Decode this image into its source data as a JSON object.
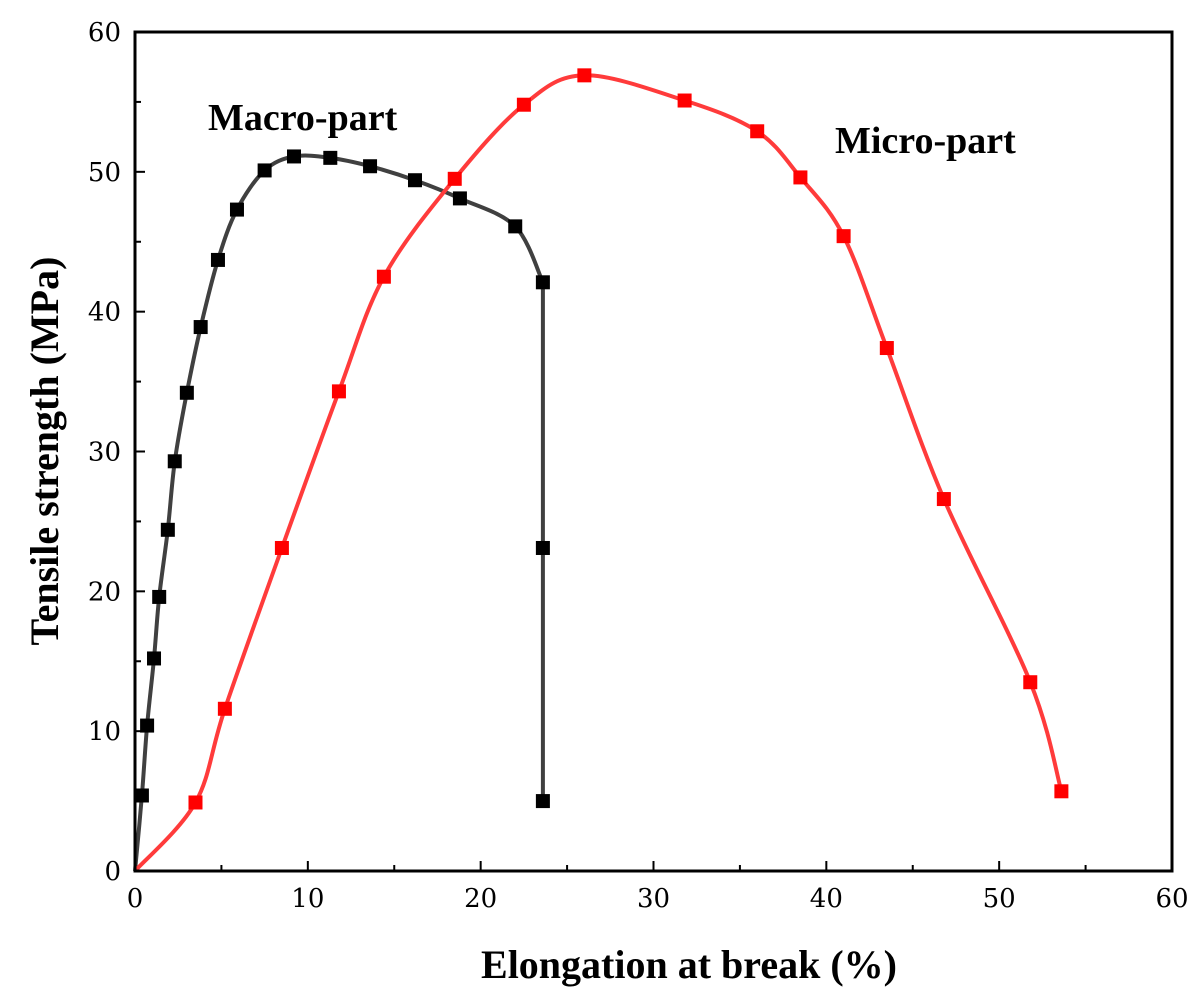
{
  "chart_data": {
    "type": "line",
    "title": "",
    "xlabel": "Elongation at break (%)",
    "ylabel": "Tensile strength (MPa)",
    "xlim": [
      0,
      60
    ],
    "ylim": [
      0,
      60
    ],
    "xticks": [
      0,
      10,
      20,
      30,
      40,
      50,
      60
    ],
    "yticks": [
      0,
      10,
      20,
      30,
      40,
      50,
      60
    ],
    "grid": false,
    "marker": "square",
    "series": [
      {
        "name": "Macro-part",
        "label": "Macro-part",
        "color": "#000000",
        "line_color": "#404040",
        "points": [
          [
            0,
            0
          ],
          [
            0.4,
            5.4
          ],
          [
            0.7,
            10.4
          ],
          [
            1.1,
            15.2
          ],
          [
            1.4,
            19.6
          ],
          [
            1.9,
            24.4
          ],
          [
            2.3,
            29.3
          ],
          [
            3.0,
            34.2
          ],
          [
            3.8,
            38.9
          ],
          [
            4.8,
            43.7
          ],
          [
            5.9,
            47.3
          ],
          [
            7.5,
            50.1
          ],
          [
            9.2,
            51.1
          ],
          [
            11.3,
            51.0
          ],
          [
            13.6,
            50.4
          ],
          [
            16.2,
            49.4
          ],
          [
            18.8,
            48.1
          ],
          [
            22.0,
            46.1
          ],
          [
            23.6,
            42.1
          ],
          [
            23.6,
            23.1
          ],
          [
            23.6,
            5.0
          ]
        ]
      },
      {
        "name": "Micro-part",
        "label": "Micro-part",
        "color": "#ff0000",
        "line_color": "#ff3b3b",
        "points": [
          [
            0,
            0
          ],
          [
            3.5,
            4.9
          ],
          [
            5.2,
            11.6
          ],
          [
            8.5,
            23.1
          ],
          [
            11.8,
            34.3
          ],
          [
            14.4,
            42.5
          ],
          [
            18.5,
            49.5
          ],
          [
            22.5,
            54.8
          ],
          [
            26.0,
            56.9
          ],
          [
            31.8,
            55.1
          ],
          [
            36.0,
            52.9
          ],
          [
            38.5,
            49.6
          ],
          [
            41.0,
            45.4
          ],
          [
            43.5,
            37.4
          ],
          [
            46.8,
            26.6
          ],
          [
            51.8,
            13.5
          ],
          [
            53.6,
            5.7
          ]
        ]
      }
    ]
  }
}
